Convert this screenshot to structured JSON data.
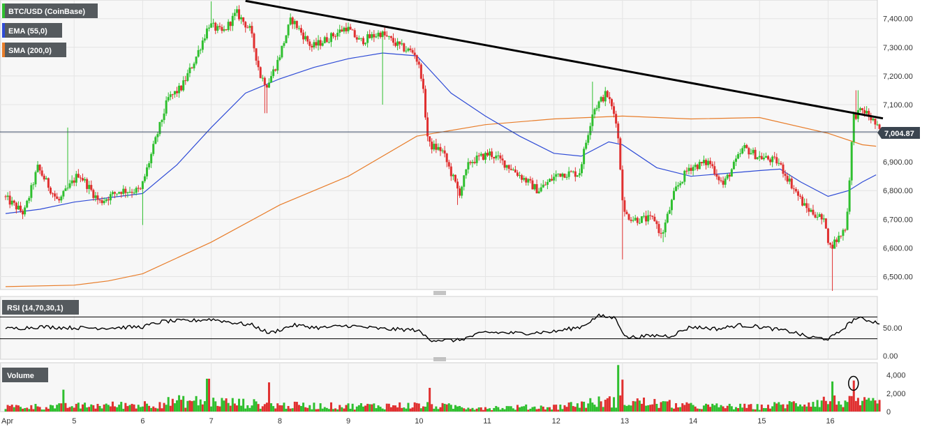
{
  "chart_data": {
    "type": "candlestick",
    "instrument_label": "BTC/USD (CoinBase)",
    "indicator_labels": {
      "ema": "EMA (55,0)",
      "sma": "SMA (200,0)",
      "rsi": "RSI (14,70,30,1)",
      "volume": "Volume"
    },
    "current_price_label": "7,004.87",
    "current_price": 7004.87,
    "colors": {
      "up": "#2fbf2f",
      "down": "#e03030",
      "ema": "#2e4bd6",
      "sma": "#e87d2a",
      "trendline": "#000000",
      "badge": "#555a5e",
      "price_badge": "#3b4550"
    },
    "x_axis": {
      "ticks": [
        "Apr",
        "5",
        "6",
        "7",
        "8",
        "9",
        "10",
        "11",
        "12",
        "13",
        "14",
        "15",
        "16"
      ],
      "day_start": 4,
      "day_end": 16.8
    },
    "price_axis": {
      "ticks": [
        "7,400.00",
        "7,300.00",
        "7,200.00",
        "7,100.00",
        "7,000.00",
        "6,900.00",
        "6,800.00",
        "6,700.00",
        "6,600.00",
        "6,500.00"
      ],
      "tick_values": [
        7400,
        7300,
        7200,
        7100,
        7000,
        6900,
        6800,
        6700,
        6600,
        6500
      ],
      "ylim": [
        6455,
        7465
      ]
    },
    "rsi_axis": {
      "ticks": [
        "50.00",
        "0.00"
      ],
      "tick_values": [
        50,
        0
      ],
      "ylim": [
        0,
        100
      ],
      "upper_band": 70,
      "lower_band": 30
    },
    "volume_axis": {
      "ticks": [
        "4,000",
        "2,000",
        "0"
      ],
      "tick_values": [
        4000,
        2000,
        0
      ],
      "ylim": [
        0,
        5200
      ]
    },
    "trendline": {
      "start": {
        "day": 7.5,
        "price": 7462
      },
      "end": {
        "day": 16.8,
        "price": 7052
      }
    },
    "anchors": [
      {
        "day": 4.0,
        "price": 6780
      },
      {
        "day": 4.3,
        "price": 6720
      },
      {
        "day": 4.5,
        "price": 6880
      },
      {
        "day": 4.8,
        "price": 6760
      },
      {
        "day": 5.1,
        "price": 6860
      },
      {
        "day": 5.4,
        "price": 6760
      },
      {
        "day": 5.7,
        "price": 6800
      },
      {
        "day": 6.0,
        "price": 6800
      },
      {
        "day": 6.2,
        "price": 6960
      },
      {
        "day": 6.4,
        "price": 7120
      },
      {
        "day": 6.6,
        "price": 7160
      },
      {
        "day": 6.8,
        "price": 7260
      },
      {
        "day": 7.0,
        "price": 7380
      },
      {
        "day": 7.2,
        "price": 7350
      },
      {
        "day": 7.4,
        "price": 7420
      },
      {
        "day": 7.6,
        "price": 7360
      },
      {
        "day": 7.75,
        "price": 7200
      },
      {
        "day": 7.85,
        "price": 7170
      },
      {
        "day": 8.0,
        "price": 7250
      },
      {
        "day": 8.2,
        "price": 7400
      },
      {
        "day": 8.5,
        "price": 7300
      },
      {
        "day": 8.8,
        "price": 7340
      },
      {
        "day": 9.0,
        "price": 7370
      },
      {
        "day": 9.2,
        "price": 7320
      },
      {
        "day": 9.5,
        "price": 7350
      },
      {
        "day": 9.8,
        "price": 7300
      },
      {
        "day": 10.0,
        "price": 7280
      },
      {
        "day": 10.1,
        "price": 7200
      },
      {
        "day": 10.2,
        "price": 6960
      },
      {
        "day": 10.4,
        "price": 6940
      },
      {
        "day": 10.65,
        "price": 6790
      },
      {
        "day": 10.8,
        "price": 6900
      },
      {
        "day": 11.1,
        "price": 6930
      },
      {
        "day": 11.4,
        "price": 6880
      },
      {
        "day": 11.8,
        "price": 6800
      },
      {
        "day": 12.1,
        "price": 6860
      },
      {
        "day": 12.4,
        "price": 6860
      },
      {
        "day": 12.6,
        "price": 7080
      },
      {
        "day": 12.8,
        "price": 7140
      },
      {
        "day": 12.95,
        "price": 7040
      },
      {
        "day": 13.05,
        "price": 6720
      },
      {
        "day": 13.2,
        "price": 6700
      },
      {
        "day": 13.5,
        "price": 6700
      },
      {
        "day": 13.6,
        "price": 6640
      },
      {
        "day": 13.8,
        "price": 6800
      },
      {
        "day": 14.0,
        "price": 6880
      },
      {
        "day": 14.3,
        "price": 6900
      },
      {
        "day": 14.5,
        "price": 6820
      },
      {
        "day": 14.8,
        "price": 6950
      },
      {
        "day": 15.0,
        "price": 6920
      },
      {
        "day": 15.3,
        "price": 6900
      },
      {
        "day": 15.5,
        "price": 6820
      },
      {
        "day": 15.7,
        "price": 6740
      },
      {
        "day": 15.9,
        "price": 6710
      },
      {
        "day": 16.0,
        "price": 6680
      },
      {
        "day": 16.05,
        "price": 6600
      },
      {
        "day": 16.2,
        "price": 6640
      },
      {
        "day": 16.3,
        "price": 6680
      },
      {
        "day": 16.4,
        "price": 7060
      },
      {
        "day": 16.55,
        "price": 7080
      },
      {
        "day": 16.7,
        "price": 7040
      },
      {
        "day": 16.78,
        "price": 7005
      }
    ],
    "shocks": [
      {
        "day": 10.6,
        "price": 6750
      },
      {
        "day": 12.55,
        "price": 7180
      },
      {
        "day": 13.0,
        "price": 6560
      },
      {
        "day": 13.6,
        "price": 6620
      },
      {
        "day": 15.9,
        "price": 6690
      },
      {
        "day": 16.05,
        "price": 6450
      },
      {
        "day": 16.42,
        "price": 7150
      },
      {
        "day": 4.9,
        "price": 7020
      },
      {
        "day": 6.0,
        "price": 6680
      },
      {
        "day": 7.0,
        "price": 7460
      },
      {
        "day": 7.8,
        "price": 7070
      },
      {
        "day": 9.5,
        "price": 7100
      }
    ],
    "ema_curve": [
      {
        "day": 4.0,
        "price": 6720
      },
      {
        "day": 4.5,
        "price": 6735
      },
      {
        "day": 5.0,
        "price": 6760
      },
      {
        "day": 5.5,
        "price": 6775
      },
      {
        "day": 6.0,
        "price": 6790
      },
      {
        "day": 6.5,
        "price": 6890
      },
      {
        "day": 7.0,
        "price": 7020
      },
      {
        "day": 7.5,
        "price": 7140
      },
      {
        "day": 8.0,
        "price": 7190
      },
      {
        "day": 8.5,
        "price": 7230
      },
      {
        "day": 9.0,
        "price": 7260
      },
      {
        "day": 9.5,
        "price": 7280
      },
      {
        "day": 10.0,
        "price": 7270
      },
      {
        "day": 10.5,
        "price": 7140
      },
      {
        "day": 11.0,
        "price": 7060
      },
      {
        "day": 11.5,
        "price": 6990
      },
      {
        "day": 12.0,
        "price": 6930
      },
      {
        "day": 12.4,
        "price": 6920
      },
      {
        "day": 12.8,
        "price": 6970
      },
      {
        "day": 13.0,
        "price": 6960
      },
      {
        "day": 13.5,
        "price": 6880
      },
      {
        "day": 14.0,
        "price": 6850
      },
      {
        "day": 14.5,
        "price": 6860
      },
      {
        "day": 15.0,
        "price": 6870
      },
      {
        "day": 15.3,
        "price": 6875
      },
      {
        "day": 15.6,
        "price": 6830
      },
      {
        "day": 16.0,
        "price": 6780
      },
      {
        "day": 16.3,
        "price": 6800
      },
      {
        "day": 16.5,
        "price": 6830
      },
      {
        "day": 16.7,
        "price": 6855
      }
    ],
    "sma_curve": [
      {
        "day": 4.0,
        "price": 6465
      },
      {
        "day": 5.0,
        "price": 6470
      },
      {
        "day": 5.5,
        "price": 6485
      },
      {
        "day": 6.0,
        "price": 6510
      },
      {
        "day": 7.0,
        "price": 6620
      },
      {
        "day": 8.0,
        "price": 6750
      },
      {
        "day": 9.0,
        "price": 6850
      },
      {
        "day": 10.0,
        "price": 6990
      },
      {
        "day": 11.0,
        "price": 7030
      },
      {
        "day": 12.0,
        "price": 7050
      },
      {
        "day": 13.0,
        "price": 7060
      },
      {
        "day": 14.0,
        "price": 7050
      },
      {
        "day": 15.0,
        "price": 7055
      },
      {
        "day": 16.0,
        "price": 7000
      },
      {
        "day": 16.5,
        "price": 6960
      },
      {
        "day": 16.7,
        "price": 6955
      }
    ],
    "rsi_curve": [
      {
        "day": 4.0,
        "price": 48
      },
      {
        "day": 4.5,
        "price": 52
      },
      {
        "day": 5.0,
        "price": 50
      },
      {
        "day": 5.5,
        "price": 50
      },
      {
        "day": 6.0,
        "price": 52
      },
      {
        "day": 6.3,
        "price": 62
      },
      {
        "day": 6.7,
        "price": 63
      },
      {
        "day": 7.0,
        "price": 66
      },
      {
        "day": 7.3,
        "price": 60
      },
      {
        "day": 7.6,
        "price": 55
      },
      {
        "day": 7.85,
        "price": 40
      },
      {
        "day": 8.2,
        "price": 55
      },
      {
        "day": 8.6,
        "price": 50
      },
      {
        "day": 9.0,
        "price": 54
      },
      {
        "day": 9.5,
        "price": 48
      },
      {
        "day": 10.0,
        "price": 46
      },
      {
        "day": 10.2,
        "price": 28
      },
      {
        "day": 10.6,
        "price": 27
      },
      {
        "day": 11.0,
        "price": 42
      },
      {
        "day": 11.5,
        "price": 40
      },
      {
        "day": 12.0,
        "price": 43
      },
      {
        "day": 12.4,
        "price": 52
      },
      {
        "day": 12.65,
        "price": 72
      },
      {
        "day": 12.9,
        "price": 68
      },
      {
        "day": 13.05,
        "price": 32
      },
      {
        "day": 13.5,
        "price": 36
      },
      {
        "day": 13.7,
        "price": 35
      },
      {
        "day": 14.0,
        "price": 52
      },
      {
        "day": 14.4,
        "price": 48
      },
      {
        "day": 14.7,
        "price": 55
      },
      {
        "day": 15.0,
        "price": 52
      },
      {
        "day": 15.5,
        "price": 42
      },
      {
        "day": 15.7,
        "price": 33
      },
      {
        "day": 16.0,
        "price": 30
      },
      {
        "day": 16.1,
        "price": 36
      },
      {
        "day": 16.4,
        "price": 68
      },
      {
        "day": 16.55,
        "price": 65
      },
      {
        "day": 16.78,
        "price": 58
      }
    ],
    "volume_profile": [
      {
        "day": 4.0,
        "price": 600
      },
      {
        "day": 5.0,
        "price": 700
      },
      {
        "day": 6.0,
        "price": 900
      },
      {
        "day": 6.5,
        "price": 1300
      },
      {
        "day": 7.0,
        "price": 1300
      },
      {
        "day": 8.0,
        "price": 800
      },
      {
        "day": 9.0,
        "price": 700
      },
      {
        "day": 10.0,
        "price": 800
      },
      {
        "day": 11.0,
        "price": 500
      },
      {
        "day": 12.0,
        "price": 600
      },
      {
        "day": 12.6,
        "price": 1200
      },
      {
        "day": 13.0,
        "price": 1400
      },
      {
        "day": 14.0,
        "price": 700
      },
      {
        "day": 15.0,
        "price": 600
      },
      {
        "day": 16.0,
        "price": 1400
      },
      {
        "day": 16.8,
        "price": 1000
      }
    ],
    "volume_spikes": [
      {
        "day": 4.85,
        "price": 2400
      },
      {
        "day": 6.95,
        "price": 3600
      },
      {
        "day": 7.85,
        "price": 3200
      },
      {
        "day": 10.2,
        "price": 2600
      },
      {
        "day": 12.95,
        "price": 5100
      },
      {
        "day": 13.0,
        "price": 3500
      },
      {
        "day": 16.05,
        "price": 3300
      },
      {
        "day": 16.38,
        "price": 3400
      }
    ],
    "volume_circle": {
      "day": 16.37,
      "value": 3100
    }
  }
}
